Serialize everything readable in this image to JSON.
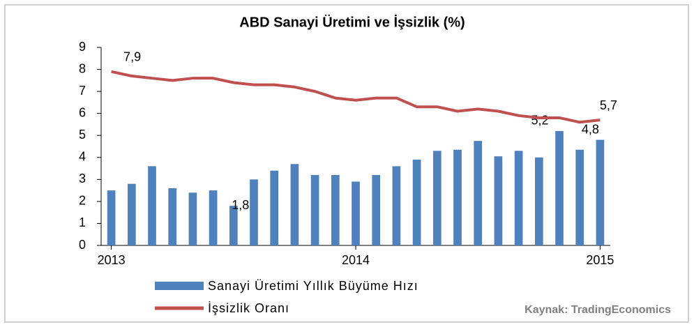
{
  "chart_data": {
    "type": "bar_line",
    "title": "ABD Sanayi Üretimi ve İşsizlik (%)",
    "categories": [
      "2013",
      null,
      null,
      null,
      null,
      null,
      null,
      null,
      null,
      null,
      null,
      null,
      "2014",
      null,
      null,
      null,
      null,
      null,
      null,
      null,
      null,
      null,
      null,
      null,
      "2015"
    ],
    "series": [
      {
        "name": "Sanayi Üretimi Yıllık Büyüme Hızı",
        "type": "bar",
        "color": "#4f81bd",
        "values": [
          2.5,
          2.8,
          3.6,
          2.6,
          2.4,
          2.5,
          1.8,
          3.0,
          3.4,
          3.7,
          3.2,
          3.2,
          2.9,
          3.2,
          3.6,
          3.9,
          4.3,
          4.35,
          4.75,
          4.05,
          4.3,
          4.0,
          5.2,
          4.35,
          4.8
        ],
        "value_labels": [
          null,
          null,
          null,
          null,
          null,
          null,
          "1,8",
          null,
          null,
          null,
          null,
          null,
          null,
          null,
          null,
          null,
          null,
          null,
          null,
          null,
          null,
          null,
          "5,2",
          null,
          "4,8"
        ]
      },
      {
        "name": "İşsizlik Oranı",
        "type": "line",
        "color": "#c0504d",
        "values": [
          7.9,
          7.7,
          7.6,
          7.5,
          7.6,
          7.6,
          7.4,
          7.3,
          7.3,
          7.2,
          7.0,
          6.7,
          6.6,
          6.7,
          6.7,
          6.3,
          6.3,
          6.1,
          6.2,
          6.1,
          5.9,
          5.8,
          5.8,
          5.6,
          5.7
        ],
        "value_labels": [
          "7,9",
          null,
          null,
          null,
          null,
          null,
          null,
          null,
          null,
          null,
          null,
          null,
          null,
          null,
          null,
          null,
          null,
          null,
          null,
          null,
          null,
          null,
          null,
          null,
          "5,7"
        ]
      }
    ],
    "ylim": [
      0,
      9
    ],
    "yticks": [
      0,
      1,
      2,
      3,
      4,
      5,
      6,
      7,
      8,
      9
    ],
    "source": "Kaynak: TradingEconomics"
  }
}
